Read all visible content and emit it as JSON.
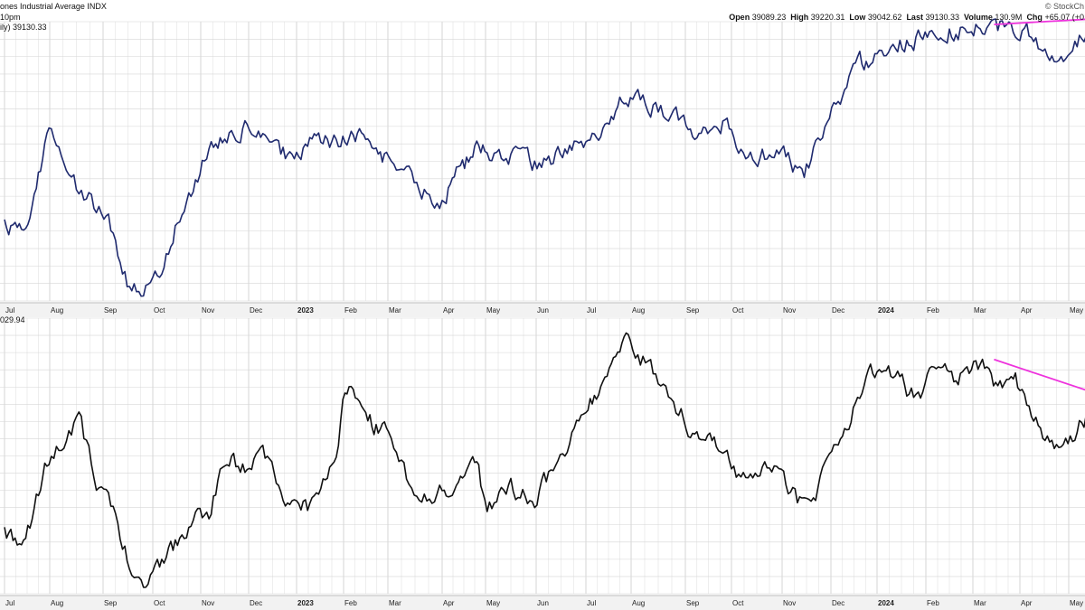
{
  "header": {
    "title": "ones Industrial Average INDX",
    "time": "10pm",
    "watermark": "© StockCh",
    "ohlc": {
      "open_label": "Open",
      "open": "39089.23",
      "high_label": "High",
      "high": "39220.31",
      "low_label": "Low",
      "low": "39042.62",
      "last_label": "Last",
      "last": "39130.33",
      "volume_label": "Volume",
      "volume": "130.9M",
      "chg_label": "Chg",
      "chg": "+65.07 (+0"
    }
  },
  "colors": {
    "price_line": "#1f2a6e",
    "indicator_line": "#111111",
    "trendline": "#ee33dd",
    "grid": "#d6d6d6",
    "axis_band": "#f2f2f2"
  },
  "chart_data": [
    {
      "type": "line",
      "legend": "ily) 39130.33",
      "x_axis": [
        "Jul",
        "Aug",
        "Sep",
        "Oct",
        "Nov",
        "Dec",
        "2023",
        "Feb",
        "Mar",
        "Apr",
        "May",
        "Jun",
        "Jul",
        "Aug",
        "Sep",
        "Oct",
        "Nov",
        "Dec",
        "2024",
        "Feb",
        "Mar",
        "Apr",
        "May"
      ],
      "bold_ticks": [
        "2023",
        "2024"
      ],
      "ylim": [
        0,
        100
      ],
      "anchors": [
        [
          0,
          28
        ],
        [
          0.45,
          24
        ],
        [
          1,
          62
        ],
        [
          1.55,
          39
        ],
        [
          2.1,
          30
        ],
        [
          2.5,
          7
        ],
        [
          2.78,
          2
        ],
        [
          3.15,
          9
        ],
        [
          3.5,
          27
        ],
        [
          4.2,
          55
        ],
        [
          4.75,
          60
        ],
        [
          5.1,
          63
        ],
        [
          5.45,
          54
        ],
        [
          6.0,
          51
        ],
        [
          6.5,
          58
        ],
        [
          7.0,
          57
        ],
        [
          7.35,
          60
        ],
        [
          7.8,
          51
        ],
        [
          8.35,
          48
        ],
        [
          8.55,
          39
        ],
        [
          8.95,
          36
        ],
        [
          9.4,
          46
        ],
        [
          9.8,
          55
        ],
        [
          10.5,
          52
        ],
        [
          10.95,
          48
        ],
        [
          11.5,
          53
        ],
        [
          11.9,
          58
        ],
        [
          12.35,
          60
        ],
        [
          12.8,
          71
        ],
        [
          13.2,
          72
        ],
        [
          13.55,
          68
        ],
        [
          14.2,
          62
        ],
        [
          14.8,
          64
        ],
        [
          15.1,
          56
        ],
        [
          15.45,
          51
        ],
        [
          16.0,
          53
        ],
        [
          16.45,
          45
        ],
        [
          16.85,
          62
        ],
        [
          17.6,
          84
        ],
        [
          18.1,
          89
        ],
        [
          18.8,
          94
        ],
        [
          19.5,
          97
        ],
        [
          20.2,
          98
        ],
        [
          20.5,
          96
        ],
        [
          20.8,
          100
        ],
        [
          21.3,
          94
        ],
        [
          21.6,
          86
        ],
        [
          22.0,
          88
        ],
        [
          22.3,
          96
        ],
        [
          22.5,
          98
        ]
      ],
      "trendline": {
        "from": [
          20.45,
          99
        ],
        "to": [
          22.5,
          101
        ]
      }
    },
    {
      "type": "line",
      "legend": "029.94",
      "x_axis": [
        "Jul",
        "Aug",
        "Sep",
        "Oct",
        "Nov",
        "Dec",
        "2023",
        "Feb",
        "Mar",
        "Apr",
        "May",
        "Jun",
        "Jul",
        "Aug",
        "Sep",
        "Oct",
        "Nov",
        "Dec",
        "2024",
        "Feb",
        "Mar",
        "Apr",
        "May"
      ],
      "bold_ticks": [
        "2023",
        "2024"
      ],
      "ylim": [
        0,
        100
      ],
      "anchors": [
        [
          0,
          23
        ],
        [
          0.45,
          18
        ],
        [
          1,
          50
        ],
        [
          1.55,
          62
        ],
        [
          1.9,
          40
        ],
        [
          2.2,
          30
        ],
        [
          2.5,
          13
        ],
        [
          2.8,
          0
        ],
        [
          3.2,
          10
        ],
        [
          3.6,
          22
        ],
        [
          4.2,
          30
        ],
        [
          4.55,
          50
        ],
        [
          4.9,
          45
        ],
        [
          5.3,
          53
        ],
        [
          5.6,
          40
        ],
        [
          6.0,
          30
        ],
        [
          6.3,
          32
        ],
        [
          6.8,
          46
        ],
        [
          7.05,
          76
        ],
        [
          7.5,
          64
        ],
        [
          8.05,
          57
        ],
        [
          8.4,
          38
        ],
        [
          8.8,
          35
        ],
        [
          9.3,
          41
        ],
        [
          9.8,
          48
        ],
        [
          10.0,
          30
        ],
        [
          10.5,
          38
        ],
        [
          11.0,
          35
        ],
        [
          11.5,
          50
        ],
        [
          12.0,
          65
        ],
        [
          12.5,
          80
        ],
        [
          13.0,
          92
        ],
        [
          13.6,
          74
        ],
        [
          14.2,
          58
        ],
        [
          14.8,
          52
        ],
        [
          15.2,
          42
        ],
        [
          15.7,
          49
        ],
        [
          16.2,
          37
        ],
        [
          16.6,
          28
        ],
        [
          17.0,
          52
        ],
        [
          17.5,
          68
        ],
        [
          18.0,
          82
        ],
        [
          18.5,
          76
        ],
        [
          18.8,
          70
        ],
        [
          19.3,
          86
        ],
        [
          19.6,
          78
        ],
        [
          20.1,
          84
        ],
        [
          20.5,
          76
        ],
        [
          20.9,
          78
        ],
        [
          21.4,
          62
        ],
        [
          21.7,
          52
        ],
        [
          22.0,
          56
        ],
        [
          22.3,
          63
        ],
        [
          22.5,
          66
        ]
      ],
      "trendline": {
        "from": [
          20.45,
          85
        ],
        "to": [
          22.5,
          73
        ]
      }
    }
  ]
}
